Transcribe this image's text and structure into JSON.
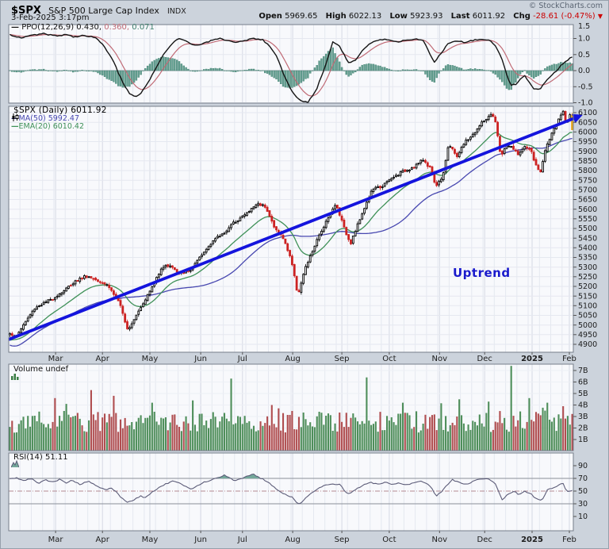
{
  "header": {
    "symbol": "$SPX",
    "name": "S&P 500 Large Cap Index",
    "exchange": "INDX",
    "datetime": "3-Feb-2025 3:17pm",
    "watermark": "© StockCharts.com",
    "quote": {
      "open_label": "Open",
      "open": "5969.65",
      "high_label": "High",
      "high": "6022.13",
      "low_label": "Low",
      "low": "5923.93",
      "last_label": "Last",
      "last": "6011.92",
      "chg_label": "Chg",
      "chg": "-28.61 (-0.47%)",
      "chg_arrow": "▼"
    }
  },
  "x_axis": {
    "months": [
      {
        "label": "Mar",
        "f": 0.083
      },
      {
        "label": "Apr",
        "f": 0.166
      },
      {
        "label": "May",
        "f": 0.25
      },
      {
        "label": "Jun",
        "f": 0.34
      },
      {
        "label": "Jul",
        "f": 0.414
      },
      {
        "label": "Aug",
        "f": 0.503
      },
      {
        "label": "Sep",
        "f": 0.59
      },
      {
        "label": "Oct",
        "f": 0.674
      },
      {
        "label": "Nov",
        "f": 0.763
      },
      {
        "label": "Dec",
        "f": 0.843
      },
      {
        "label": "2025",
        "f": 0.927,
        "bold": true
      },
      {
        "label": "Feb",
        "f": 0.993
      }
    ]
  },
  "colors": {
    "frame": "#ccd3dc",
    "plot_bg": "#f8f9fc",
    "grid": "#e5e8f0",
    "grid_month": "#d5d9e4",
    "border": "#767e8a",
    "axis_text": "#1c1c1c",
    "candle_up": "#000000",
    "candle_up_fill": "#ffffff",
    "candle_down": "#cc2222",
    "last_candle": "#e8a718",
    "ma50": "#4848b0",
    "ema20": "#3f9158",
    "trendline": "#1414dd",
    "annotation": "#1a1acc",
    "ppo_line": "#141414",
    "ppo_signal": "#c06a75",
    "ppo_hist_fill": "#66a193",
    "ppo_hist_stroke": "#3f7e6d",
    "vol_up": "#4e8e5a",
    "vol_down": "#b04e50",
    "rsi_line": "#5c5c78",
    "rsi_fill": "#74a89a",
    "rsi_level": "#8a8f99",
    "rsi_mid": "#b48a92",
    "neg_red": "#cc0000"
  },
  "chart_data": [
    {
      "type": "line",
      "name": "PPO",
      "label": "PPO(12,26,9)",
      "values": [
        0.43,
        0.36,
        0.071
      ],
      "display": [
        "0.430,",
        "0.360,",
        "0.071"
      ],
      "signal_ema_days": 9,
      "yticks": [
        1.5,
        1.0,
        0.5,
        0.0,
        -0.5,
        -1.0
      ],
      "ylim": [
        -1.2,
        1.5
      ],
      "anchors": [
        [
          0.0,
          1.12
        ],
        [
          0.02,
          1.02
        ],
        [
          0.04,
          1.1
        ],
        [
          0.06,
          1.15
        ],
        [
          0.08,
          1.08
        ],
        [
          0.1,
          1.12
        ],
        [
          0.115,
          1.05
        ],
        [
          0.13,
          1.1
        ],
        [
          0.145,
          1.06
        ],
        [
          0.155,
          1.0
        ],
        [
          0.17,
          0.7
        ],
        [
          0.185,
          0.25
        ],
        [
          0.2,
          -0.35
        ],
        [
          0.212,
          -0.7
        ],
        [
          0.222,
          -0.82
        ],
        [
          0.232,
          -0.72
        ],
        [
          0.245,
          -0.4
        ],
        [
          0.26,
          0.1
        ],
        [
          0.275,
          0.55
        ],
        [
          0.29,
          0.85
        ],
        [
          0.3,
          1.0
        ],
        [
          0.315,
          0.9
        ],
        [
          0.33,
          0.78
        ],
        [
          0.345,
          0.85
        ],
        [
          0.36,
          0.95
        ],
        [
          0.375,
          1.0
        ],
        [
          0.39,
          0.92
        ],
        [
          0.405,
          0.88
        ],
        [
          0.42,
          0.95
        ],
        [
          0.435,
          1.0
        ],
        [
          0.45,
          0.95
        ],
        [
          0.46,
          0.8
        ],
        [
          0.475,
          0.45
        ],
        [
          0.49,
          -0.25
        ],
        [
          0.505,
          -0.75
        ],
        [
          0.52,
          -0.95
        ],
        [
          0.53,
          -0.98
        ],
        [
          0.545,
          -0.6
        ],
        [
          0.56,
          0.1
        ],
        [
          0.574,
          0.88
        ],
        [
          0.585,
          0.8
        ],
        [
          0.603,
          0.22
        ],
        [
          0.615,
          0.35
        ],
        [
          0.63,
          0.7
        ],
        [
          0.645,
          0.9
        ],
        [
          0.66,
          0.97
        ],
        [
          0.675,
          0.95
        ],
        [
          0.69,
          0.9
        ],
        [
          0.705,
          0.95
        ],
        [
          0.72,
          0.98
        ],
        [
          0.734,
          0.95
        ],
        [
          0.745,
          0.6
        ],
        [
          0.755,
          0.25
        ],
        [
          0.765,
          0.5
        ],
        [
          0.78,
          0.85
        ],
        [
          0.795,
          0.92
        ],
        [
          0.81,
          0.88
        ],
        [
          0.826,
          0.95
        ],
        [
          0.84,
          0.97
        ],
        [
          0.855,
          0.93
        ],
        [
          0.865,
          0.75
        ],
        [
          0.876,
          0.3
        ],
        [
          0.89,
          -0.45
        ],
        [
          0.9,
          -0.42
        ],
        [
          0.915,
          -0.15
        ],
        [
          0.931,
          -0.55
        ],
        [
          0.942,
          -0.58
        ],
        [
          0.955,
          -0.3
        ],
        [
          0.972,
          0.0
        ],
        [
          0.985,
          0.25
        ],
        [
          1.0,
          0.43
        ]
      ]
    },
    {
      "type": "candlestick",
      "symbol": "$SPX",
      "timeframe": "Daily",
      "last": 6011.92,
      "legend": "$SPX (Daily) 6011.92",
      "ma50": {
        "label": "MA(50) 5992.47",
        "window": 50,
        "value": 5992.47
      },
      "ema20": {
        "label": "EMA(20) 6010.42",
        "span": 20,
        "value": 6010.42
      },
      "yaxis": {
        "min": 4900,
        "max": 6100,
        "step": 50
      },
      "trendline": {
        "from": [
          0.0,
          4925
        ],
        "to": [
          1.005,
          6075
        ]
      },
      "annotation": {
        "text": "Uptrend"
      },
      "close_anchors": [
        [
          0.0,
          4960
        ],
        [
          0.01,
          4935
        ],
        [
          0.025,
          5005
        ],
        [
          0.045,
          5090
        ],
        [
          0.075,
          5135
        ],
        [
          0.095,
          5175
        ],
        [
          0.115,
          5225
        ],
        [
          0.135,
          5255
        ],
        [
          0.155,
          5235
        ],
        [
          0.175,
          5205
        ],
        [
          0.195,
          5110
        ],
        [
          0.21,
          4975
        ],
        [
          0.225,
          5055
        ],
        [
          0.25,
          5180
        ],
        [
          0.27,
          5300
        ],
        [
          0.285,
          5310
        ],
        [
          0.3,
          5265
        ],
        [
          0.32,
          5280
        ],
        [
          0.34,
          5355
        ],
        [
          0.36,
          5435
        ],
        [
          0.38,
          5475
        ],
        [
          0.4,
          5535
        ],
        [
          0.42,
          5575
        ],
        [
          0.44,
          5630
        ],
        [
          0.455,
          5615
        ],
        [
          0.47,
          5505
        ],
        [
          0.485,
          5455
        ],
        [
          0.5,
          5345
        ],
        [
          0.512,
          5155
        ],
        [
          0.525,
          5290
        ],
        [
          0.545,
          5430
        ],
        [
          0.565,
          5555
        ],
        [
          0.58,
          5625
        ],
        [
          0.595,
          5505
        ],
        [
          0.605,
          5415
        ],
        [
          0.625,
          5570
        ],
        [
          0.645,
          5705
        ],
        [
          0.66,
          5715
        ],
        [
          0.675,
          5750
        ],
        [
          0.695,
          5790
        ],
        [
          0.715,
          5815
        ],
        [
          0.735,
          5855
        ],
        [
          0.75,
          5805
        ],
        [
          0.757,
          5715
        ],
        [
          0.77,
          5775
        ],
        [
          0.78,
          5935
        ],
        [
          0.795,
          5875
        ],
        [
          0.81,
          5950
        ],
        [
          0.825,
          5990
        ],
        [
          0.84,
          6050
        ],
        [
          0.855,
          6085
        ],
        [
          0.862,
          6075
        ],
        [
          0.873,
          5875
        ],
        [
          0.885,
          5935
        ],
        [
          0.895,
          5910
        ],
        [
          0.905,
          5885
        ],
        [
          0.915,
          5920
        ],
        [
          0.925,
          5915
        ],
        [
          0.935,
          5830
        ],
        [
          0.943,
          5785
        ],
        [
          0.955,
          5940
        ],
        [
          0.965,
          5995
        ],
        [
          0.975,
          6055
        ],
        [
          0.983,
          6110
        ],
        [
          0.99,
          6040
        ],
        [
          0.996,
          6095
        ],
        [
          1.0,
          6012
        ]
      ]
    },
    {
      "type": "bar",
      "name": "Volume",
      "label": "Volume",
      "status": "undef",
      "unit": "B",
      "base_range": [
        1.6,
        3.5
      ],
      "yticks": [
        {
          "v": 7,
          "label": "7B"
        },
        {
          "v": 6,
          "label": "6B"
        },
        {
          "v": 5,
          "label": "5B"
        },
        {
          "v": 4,
          "label": "4B"
        },
        {
          "v": 3,
          "label": "3B"
        },
        {
          "v": 2,
          "label": "2B"
        },
        {
          "v": 1,
          "label": "1B"
        }
      ],
      "spikes": [
        [
          0.08,
          4.6,
          "down"
        ],
        [
          0.1,
          4.1,
          "up"
        ],
        [
          0.143,
          5.3,
          "down"
        ],
        [
          0.185,
          4.8,
          "down"
        ],
        [
          0.255,
          4.2,
          "up"
        ],
        [
          0.325,
          4.4,
          "up"
        ],
        [
          0.392,
          6.3,
          "up"
        ],
        [
          0.465,
          4.0,
          "down"
        ],
        [
          0.635,
          6.4,
          "up"
        ],
        [
          0.7,
          4.2,
          "up"
        ],
        [
          0.8,
          4.5,
          "up"
        ],
        [
          0.853,
          4.3,
          "up"
        ],
        [
          0.892,
          7.4,
          "up"
        ],
        [
          0.925,
          4.6,
          "up"
        ],
        [
          0.955,
          4.2,
          "up"
        ],
        [
          0.985,
          3.9,
          "down"
        ]
      ]
    },
    {
      "type": "line",
      "name": "RSI",
      "label": "RSI(14)",
      "last": 51.11,
      "legend": "RSI(14) 51.11",
      "yticks": [
        90,
        70,
        50,
        30,
        10
      ],
      "overbought": 70,
      "oversold": 30,
      "mid": 50,
      "anchors": [
        [
          0.0,
          69
        ],
        [
          0.012,
          71
        ],
        [
          0.025,
          66
        ],
        [
          0.038,
          70
        ],
        [
          0.05,
          62
        ],
        [
          0.062,
          68
        ],
        [
          0.075,
          64
        ],
        [
          0.09,
          69
        ],
        [
          0.1,
          63
        ],
        [
          0.112,
          67
        ],
        [
          0.125,
          60
        ],
        [
          0.14,
          66
        ],
        [
          0.155,
          57
        ],
        [
          0.17,
          52
        ],
        [
          0.18,
          55
        ],
        [
          0.19,
          48
        ],
        [
          0.2,
          38
        ],
        [
          0.21,
          32
        ],
        [
          0.222,
          37
        ],
        [
          0.232,
          42
        ],
        [
          0.242,
          40
        ],
        [
          0.255,
          50
        ],
        [
          0.27,
          58
        ],
        [
          0.282,
          63
        ],
        [
          0.292,
          66
        ],
        [
          0.302,
          62
        ],
        [
          0.312,
          57
        ],
        [
          0.322,
          53
        ],
        [
          0.332,
          58
        ],
        [
          0.345,
          64
        ],
        [
          0.36,
          68
        ],
        [
          0.372,
          72
        ],
        [
          0.382,
          75
        ],
        [
          0.392,
          70
        ],
        [
          0.402,
          66
        ],
        [
          0.412,
          70
        ],
        [
          0.422,
          74
        ],
        [
          0.432,
          77
        ],
        [
          0.442,
          72
        ],
        [
          0.452,
          68
        ],
        [
          0.462,
          62
        ],
        [
          0.472,
          55
        ],
        [
          0.482,
          48
        ],
        [
          0.492,
          44
        ],
        [
          0.502,
          40
        ],
        [
          0.513,
          29
        ],
        [
          0.522,
          35
        ],
        [
          0.532,
          45
        ],
        [
          0.545,
          52
        ],
        [
          0.558,
          58
        ],
        [
          0.572,
          62
        ],
        [
          0.588,
          60
        ],
        [
          0.6,
          45
        ],
        [
          0.612,
          50
        ],
        [
          0.625,
          58
        ],
        [
          0.64,
          64
        ],
        [
          0.655,
          61
        ],
        [
          0.668,
          64
        ],
        [
          0.68,
          60
        ],
        [
          0.692,
          63
        ],
        [
          0.705,
          60
        ],
        [
          0.718,
          63
        ],
        [
          0.73,
          66
        ],
        [
          0.742,
          62
        ],
        [
          0.75,
          55
        ],
        [
          0.758,
          42
        ],
        [
          0.766,
          48
        ],
        [
          0.776,
          58
        ],
        [
          0.786,
          68
        ],
        [
          0.8,
          64
        ],
        [
          0.812,
          60
        ],
        [
          0.822,
          65
        ],
        [
          0.832,
          68
        ],
        [
          0.842,
          70
        ],
        [
          0.852,
          68
        ],
        [
          0.862,
          64
        ],
        [
          0.87,
          48
        ],
        [
          0.876,
          36
        ],
        [
          0.886,
          45
        ],
        [
          0.896,
          50
        ],
        [
          0.906,
          44
        ],
        [
          0.916,
          50
        ],
        [
          0.926,
          46
        ],
        [
          0.936,
          38
        ],
        [
          0.946,
          35
        ],
        [
          0.956,
          52
        ],
        [
          0.966,
          55
        ],
        [
          0.976,
          60
        ],
        [
          0.984,
          62
        ],
        [
          0.99,
          48
        ],
        [
          1.0,
          51.11
        ]
      ]
    }
  ]
}
